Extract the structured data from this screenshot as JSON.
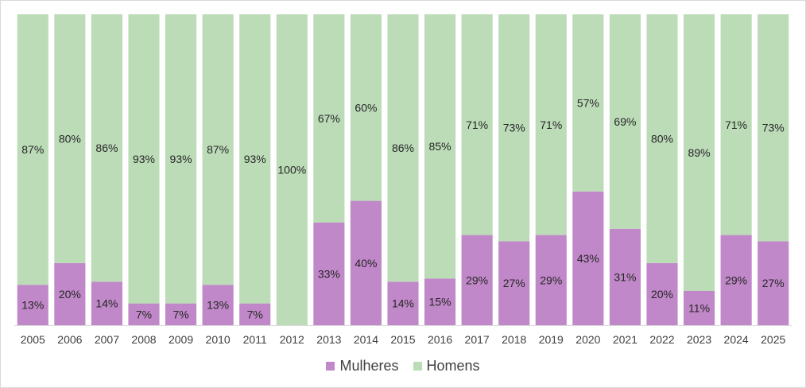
{
  "chart_data": {
    "type": "bar",
    "stacked": "percent",
    "categories": [
      "2005",
      "2006",
      "2007",
      "2008",
      "2009",
      "2010",
      "2011",
      "2012",
      "2013",
      "2014",
      "2015",
      "2016",
      "2017",
      "2018",
      "2019",
      "2020",
      "2021",
      "2022",
      "2023",
      "2024",
      "2025"
    ],
    "series": [
      {
        "name": "Mulheres",
        "color": "#c088c8",
        "values": [
          13,
          20,
          14,
          7,
          7,
          13,
          7,
          0,
          33,
          40,
          14,
          15,
          29,
          27,
          29,
          43,
          31,
          20,
          11,
          29,
          27
        ],
        "labels": [
          "13%",
          "20%",
          "14%",
          "7%",
          "7%",
          "13%",
          "7%",
          "",
          "33%",
          "40%",
          "14%",
          "15%",
          "29%",
          "27%",
          "29%",
          "43%",
          "31%",
          "20%",
          "11%",
          "29%",
          "27%"
        ]
      },
      {
        "name": "Homens",
        "color": "#bcdcb8",
        "values": [
          87,
          80,
          86,
          93,
          93,
          87,
          93,
          100,
          67,
          60,
          86,
          85,
          71,
          73,
          71,
          57,
          69,
          80,
          89,
          71,
          73
        ],
        "labels": [
          "87%",
          "80%",
          "86%",
          "93%",
          "93%",
          "87%",
          "93%",
          "100%",
          "67%",
          "60%",
          "86%",
          "85%",
          "71%",
          "73%",
          "71%",
          "57%",
          "69%",
          "80%",
          "89%",
          "71%",
          "73%"
        ]
      }
    ],
    "ylim": [
      0,
      100
    ],
    "title": "",
    "xlabel": "",
    "ylabel": "",
    "grid": false,
    "legend_position": "bottom"
  }
}
